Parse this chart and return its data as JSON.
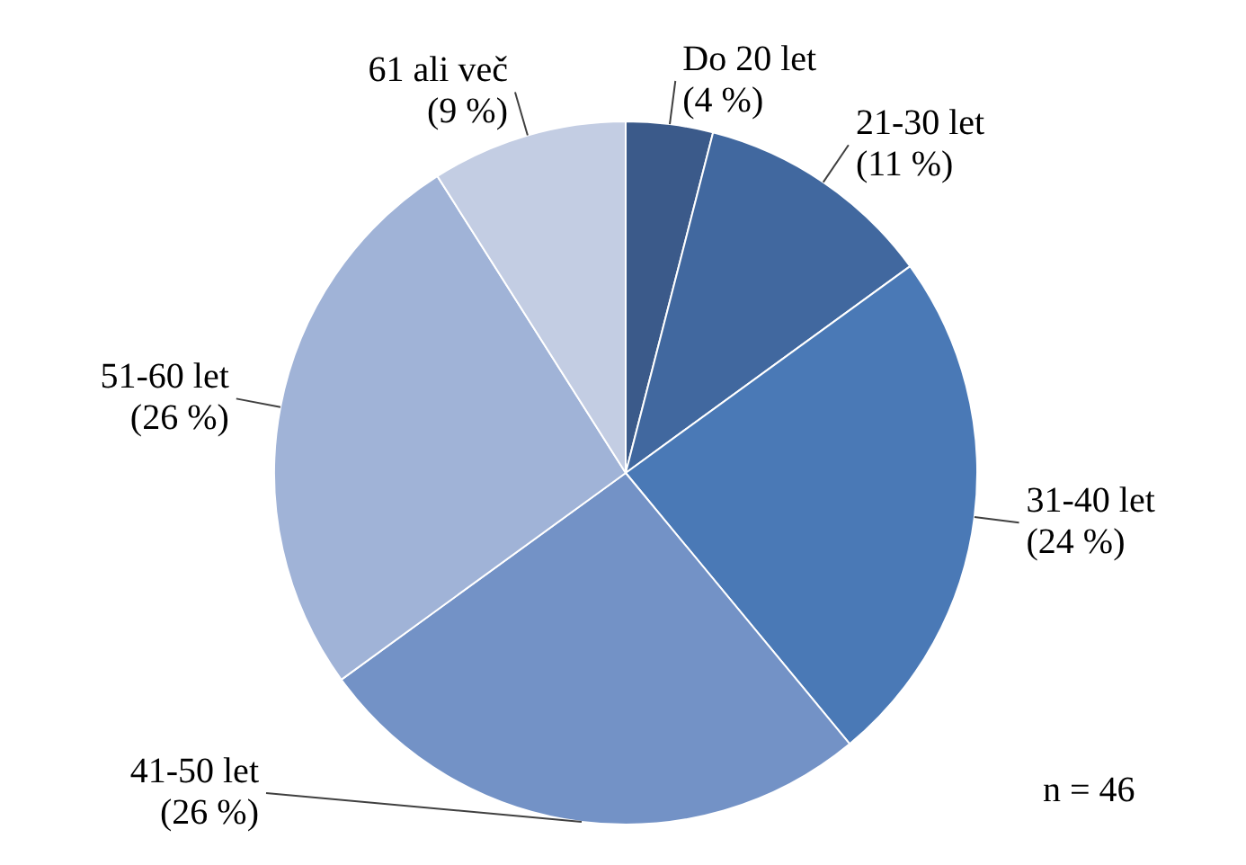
{
  "chart_data": {
    "type": "pie",
    "categories": [
      "Do 20 let",
      "21-30 let",
      "31-40 let",
      "41-50 let",
      "51-60 let",
      "61 ali več"
    ],
    "values": [
      4,
      11,
      24,
      26,
      26,
      9
    ],
    "value_labels": [
      "(4 %)",
      "(11 %)",
      "(24 %)",
      "(26 %)",
      "(26 %)",
      "(9 %)"
    ],
    "colors": [
      "#3b5a8a",
      "#41689f",
      "#4a79b6",
      "#7392c6",
      "#a0b3d7",
      "#c3cde3"
    ],
    "legend": false,
    "annotations": [
      "n = 46"
    ]
  }
}
